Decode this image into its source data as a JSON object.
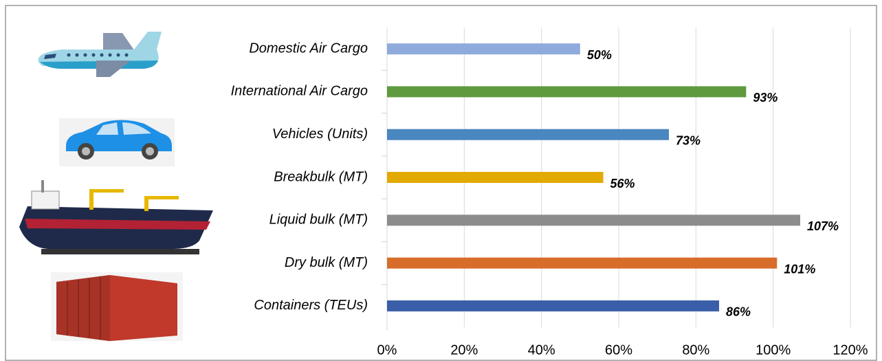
{
  "chart_data": {
    "type": "bar",
    "orientation": "horizontal",
    "categories": [
      "Domestic Air Cargo",
      "International Air Cargo",
      "Vehicles (Units)",
      "Breakbulk (MT)",
      "Liquid bulk (MT)",
      "Dry bulk (MT)",
      "Containers (TEUs)"
    ],
    "values": [
      50,
      93,
      73,
      56,
      107,
      101,
      86
    ],
    "value_labels": [
      "50%",
      "93%",
      "73%",
      "56%",
      "107%",
      "101%",
      "86%"
    ],
    "colors": [
      "#8faadc",
      "#5f9a3e",
      "#4a86c0",
      "#e2aa00",
      "#8c8c8c",
      "#d86c2a",
      "#3b5ea8"
    ],
    "xlim": [
      0,
      120
    ],
    "xticks": [
      {
        "value": 0,
        "label": "0%"
      },
      {
        "value": 20,
        "label": "20%"
      },
      {
        "value": 40,
        "label": "40%"
      },
      {
        "value": 60,
        "label": "60%"
      },
      {
        "value": 80,
        "label": "80%"
      },
      {
        "value": 100,
        "label": "100%"
      },
      {
        "value": 120,
        "label": "120%"
      }
    ],
    "grid": true
  }
}
